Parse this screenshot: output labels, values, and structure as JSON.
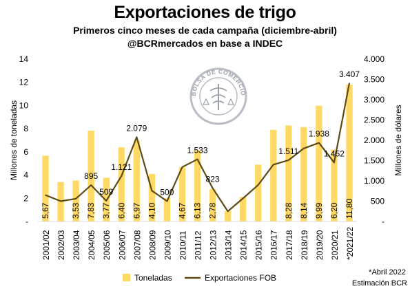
{
  "header": {
    "title": "Exportaciones de trigo",
    "subtitle": "Primeros cinco meses de cada campaña (diciembre-abril)",
    "source": "@BCRmercados en base a INDEC"
  },
  "logo": {
    "text": "BOLSA DE COMERCIO DE ROSARIO"
  },
  "footnote": {
    "line1": "*Abril 2022",
    "line2": "Estimación BCR"
  },
  "chart_data": {
    "type": "bar+line",
    "categories": [
      "2001/02",
      "2002/03",
      "2003/04",
      "2004/05",
      "2005/06",
      "2006/07",
      "2007/08",
      "2008/09",
      "2009/10",
      "2010/11",
      "2011/12",
      "2012/13",
      "2013/14",
      "2014/15",
      "2015/16",
      "2016/17",
      "2017/18",
      "2018/19",
      "2019/20",
      "2020/21",
      "*2021/22"
    ],
    "series": [
      {
        "name": "Toneladas",
        "type": "bar",
        "axis": "left",
        "color": "#ffd966",
        "values": [
          5.67,
          3.4,
          3.53,
          7.83,
          3.77,
          6.4,
          6.97,
          4.1,
          2.0,
          4.67,
          6.13,
          2.78,
          0.9,
          2.1,
          4.9,
          7.9,
          8.28,
          8.14,
          9.99,
          6.2,
          11.8
        ],
        "labels": [
          "5,67",
          "",
          "3,53",
          "7,83",
          "3,77",
          "6,40",
          "6,97",
          "4,10",
          "",
          "4,67",
          "6,13",
          "2,78",
          "",
          "",
          "",
          "",
          "8,28",
          "8,14",
          "9,99",
          "6,20",
          "11,80"
        ]
      },
      {
        "name": "Exportaciones FOB",
        "type": "line",
        "axis": "right",
        "color": "#5c4a14",
        "values": [
          650,
          500,
          560,
          895,
          509,
          1121,
          2079,
          760,
          500,
          1340,
          1533,
          823,
          250,
          570,
          900,
          1400,
          1511,
          1800,
          1938,
          1452,
          3407
        ],
        "labels": [
          "",
          "",
          "",
          "895",
          "509",
          "1.121",
          "2.079",
          "",
          "500",
          "",
          "1.533",
          "823",
          "",
          "",
          "",
          "",
          "1.511",
          "",
          "1.938",
          "1.452",
          "3.407"
        ]
      }
    ],
    "ylabel": "Millones de toneladas",
    "ylim": [
      0,
      14
    ],
    "yticks": [
      "-",
      "2",
      "4",
      "6",
      "8",
      "10",
      "12",
      "14"
    ],
    "y2label": "Millones de dólares",
    "y2lim": [
      0,
      4000
    ],
    "y2ticks": [
      "-",
      "500",
      "1.000",
      "1.500",
      "2.000",
      "2.500",
      "3.000",
      "3.500",
      "4.000"
    ],
    "legend_position": "bottom"
  }
}
